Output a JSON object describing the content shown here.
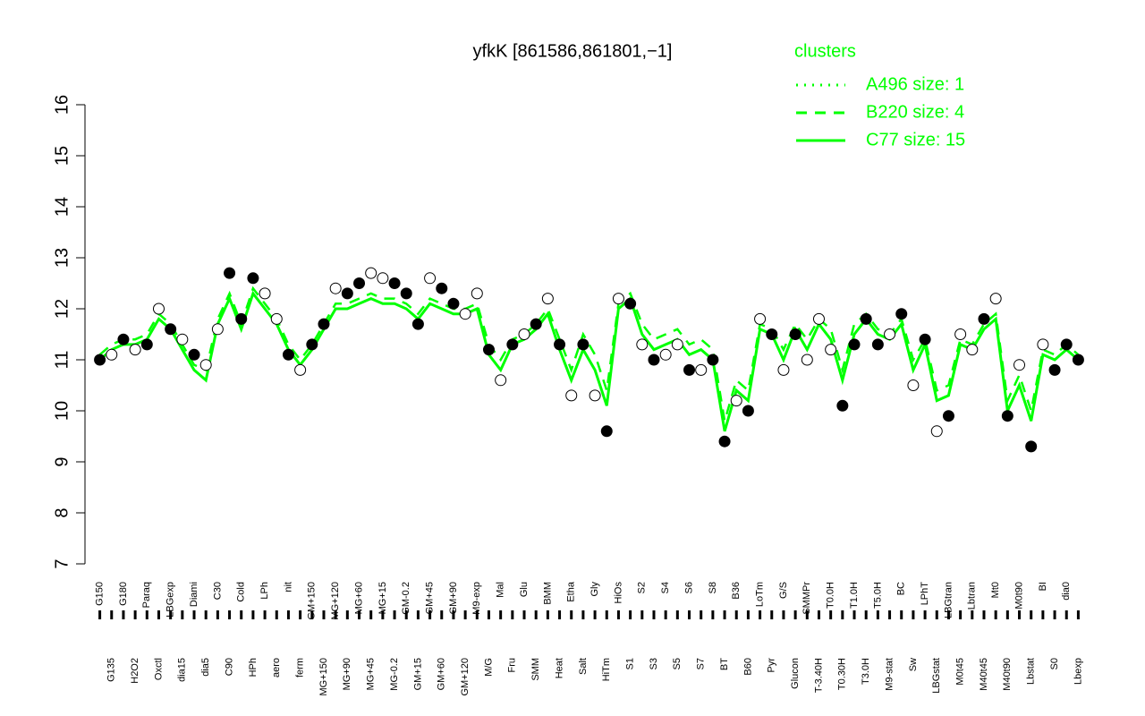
{
  "chart_data": {
    "type": "line",
    "title": "yfkK [861586,861801,−1]",
    "legend_title": "clusters",
    "categories": [
      "G150",
      "G135",
      "G180",
      "H2O2",
      "Paraq",
      "Oxctl",
      "LBGexp",
      "dia15",
      "Diami",
      "dia5",
      "C30",
      "C90",
      "Cold",
      "HPh",
      "LPh",
      "aero",
      "nit",
      "ferm",
      "GM+150",
      "MG+150",
      "MG+120",
      "MG+90",
      "MG+60",
      "MG+45",
      "MG+15",
      "MG-0.2",
      "GM-0.2",
      "GM+15",
      "GM+45",
      "GM+60",
      "GM+90",
      "GM+120",
      "M9-exp",
      "M/G",
      "Mal",
      "Fru",
      "Glu",
      "SMM",
      "BMM",
      "Heat",
      "Etha",
      "Salt",
      "Gly",
      "HiTm",
      "HiOs",
      "S1",
      "S2",
      "S3",
      "S4",
      "S5",
      "S6",
      "S7",
      "S8",
      "BT",
      "B36",
      "B60",
      "LoTm",
      "Pyr",
      "G/S",
      "Glucon",
      "SMMPr",
      "T-3.40H",
      "T0.0H",
      "T0.30H",
      "T1.0H",
      "T3.0H",
      "T5.0H",
      "M9-stat",
      "BC",
      "Sw",
      "LPhT",
      "LBGstat",
      "LBGtran",
      "M0t45",
      "Lbtran",
      "M40t45",
      "Mt0",
      "M40t90",
      "M0t90",
      "Lbstat",
      "BI",
      "S0",
      "dia0",
      "Lbexp"
    ],
    "series": [
      {
        "name": "A496 size: 1",
        "color": "#00ff00",
        "dash": "dotted"
      },
      {
        "name": "B220 size: 4",
        "color": "#00ff00",
        "dash": "dashed",
        "values": [
          11.1,
          11.3,
          11.4,
          11.4,
          11.5,
          11.9,
          11.7,
          11.3,
          10.9,
          10.8,
          11.8,
          12.3,
          11.7,
          12.4,
          12.1,
          11.8,
          11.3,
          11.0,
          11.3,
          11.7,
          12.1,
          12.1,
          12.2,
          12.3,
          12.2,
          12.2,
          12.1,
          11.9,
          12.2,
          12.1,
          12.0,
          12.0,
          12.1,
          11.3,
          11.0,
          11.4,
          11.5,
          11.7,
          12.0,
          11.4,
          10.8,
          11.5,
          11.1,
          10.4,
          12.1,
          12.3,
          11.7,
          11.4,
          11.5,
          11.6,
          11.3,
          11.4,
          11.2,
          9.8,
          10.6,
          10.4,
          11.7,
          11.6,
          11.2,
          11.7,
          11.4,
          11.8,
          11.6,
          10.8,
          11.7,
          11.9,
          11.6,
          11.5,
          11.8,
          11.0,
          11.4,
          10.4,
          10.5,
          11.4,
          11.3,
          11.7,
          11.9,
          10.2,
          10.7,
          10.0,
          11.2,
          11.1,
          11.3,
          11.1
        ]
      },
      {
        "name": "C77 size: 15",
        "color": "#00ff00",
        "dash": "solid",
        "values": [
          11.0,
          11.2,
          11.3,
          11.3,
          11.4,
          11.8,
          11.6,
          11.2,
          10.8,
          10.6,
          11.7,
          12.2,
          11.6,
          12.3,
          12.0,
          11.7,
          11.2,
          10.9,
          11.2,
          11.6,
          12.0,
          12.0,
          12.1,
          12.2,
          12.1,
          12.1,
          12.0,
          11.8,
          12.1,
          12.0,
          11.9,
          11.9,
          12.0,
          11.1,
          10.8,
          11.3,
          11.4,
          11.6,
          11.9,
          11.2,
          10.6,
          11.2,
          10.8,
          10.1,
          12.0,
          12.2,
          11.5,
          11.2,
          11.3,
          11.4,
          11.1,
          11.2,
          11.0,
          9.6,
          10.4,
          10.2,
          11.6,
          11.5,
          11.0,
          11.6,
          11.2,
          11.7,
          11.4,
          10.6,
          11.5,
          11.8,
          11.5,
          11.4,
          11.7,
          10.8,
          11.3,
          10.2,
          10.3,
          11.3,
          11.2,
          11.6,
          11.8,
          10.0,
          10.5,
          9.8,
          11.1,
          11.0,
          11.2,
          11.0
        ]
      }
    ],
    "points": {
      "values": [
        11.0,
        11.1,
        11.4,
        11.2,
        11.3,
        12.0,
        11.6,
        11.4,
        11.1,
        10.9,
        11.6,
        12.7,
        11.8,
        12.6,
        12.3,
        11.8,
        11.1,
        10.8,
        11.3,
        11.7,
        12.4,
        12.3,
        12.5,
        12.7,
        12.6,
        12.5,
        12.3,
        11.7,
        12.6,
        12.4,
        12.1,
        11.9,
        12.3,
        11.2,
        10.6,
        11.3,
        11.5,
        11.7,
        12.2,
        11.3,
        10.3,
        11.3,
        10.3,
        9.6,
        12.2,
        12.1,
        11.3,
        11.0,
        11.1,
        11.3,
        10.8,
        10.8,
        11.0,
        9.4,
        10.2,
        10.0,
        11.8,
        11.5,
        10.8,
        11.5,
        11.0,
        11.8,
        11.2,
        10.1,
        11.3,
        11.8,
        11.3,
        11.5,
        11.9,
        10.5,
        11.4,
        9.6,
        9.9,
        11.5,
        11.2,
        11.8,
        12.2,
        9.9,
        10.9,
        9.3,
        11.3,
        10.8,
        11.3,
        11.0
      ],
      "filled": [
        true,
        false,
        true,
        false,
        true,
        false,
        true,
        false,
        true,
        false,
        false,
        true,
        true,
        true,
        false,
        false,
        true,
        false,
        true,
        true,
        false,
        true,
        true,
        false,
        false,
        true,
        true,
        true,
        false,
        true,
        true,
        false,
        false,
        true,
        false,
        true,
        false,
        true,
        false,
        true,
        false,
        true,
        false,
        true,
        false,
        true,
        false,
        true,
        false,
        false,
        true,
        false,
        true,
        true,
        false,
        true,
        false,
        true,
        false,
        true,
        false,
        false,
        false,
        true,
        true,
        true,
        true,
        false,
        true,
        false,
        true,
        false,
        true,
        false,
        false,
        true,
        false,
        true,
        false,
        true,
        false,
        true,
        true,
        true
      ]
    },
    "ylim": [
      7,
      16
    ],
    "yticks": [
      7,
      8,
      9,
      10,
      11,
      12,
      13,
      14,
      15,
      16
    ]
  }
}
